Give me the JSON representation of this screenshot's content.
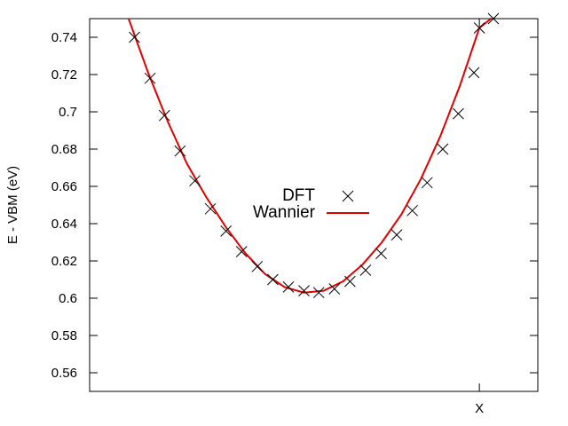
{
  "chart_data": {
    "type": "scatter",
    "ylabel": "E - VBM (eV)",
    "xlabel": "",
    "xlim": [
      0,
      1.15
    ],
    "ylim": [
      0.55,
      0.75
    ],
    "y_ticks": [
      0.56,
      0.58,
      0.6,
      0.62,
      0.64,
      0.66,
      0.68,
      0.7,
      0.72,
      0.74
    ],
    "y_tick_labels": [
      "0.56",
      "0.58",
      "0.6",
      "0.62",
      "0.64",
      "0.66",
      "0.68",
      "0.7",
      "0.72",
      "0.74"
    ],
    "x_ticks": [
      1.0
    ],
    "x_tick_labels": [
      "X"
    ],
    "grid": false,
    "legend_position": "center",
    "series": [
      {
        "name": "DFT",
        "style": "markers",
        "marker": "x",
        "color": "#000000",
        "x": [
          0.115,
          0.155,
          0.192,
          0.232,
          0.27,
          0.31,
          0.35,
          0.39,
          0.43,
          0.47,
          0.51,
          0.55,
          0.588,
          0.628,
          0.668,
          0.708,
          0.748,
          0.788,
          0.828,
          0.866,
          0.906,
          0.946,
          0.986,
          1.0,
          1.036
        ],
        "y": [
          0.74,
          0.718,
          0.698,
          0.679,
          0.663,
          0.648,
          0.636,
          0.625,
          0.617,
          0.61,
          0.606,
          0.604,
          0.603,
          0.605,
          0.609,
          0.615,
          0.624,
          0.634,
          0.647,
          0.662,
          0.68,
          0.699,
          0.721,
          0.745,
          0.75
        ]
      },
      {
        "name": "Wannier",
        "style": "line",
        "color": "#e00000",
        "x": [
          0.1,
          0.15,
          0.2,
          0.25,
          0.3,
          0.35,
          0.4,
          0.45,
          0.5,
          0.55,
          0.6,
          0.65,
          0.7,
          0.75,
          0.8,
          0.85,
          0.9,
          0.95,
          1.0,
          1.03
        ],
        "y": [
          0.75,
          0.721,
          0.695,
          0.672,
          0.654,
          0.638,
          0.624,
          0.613,
          0.606,
          0.603,
          0.604,
          0.609,
          0.618,
          0.63,
          0.645,
          0.664,
          0.687,
          0.714,
          0.745,
          0.75
        ]
      }
    ]
  }
}
